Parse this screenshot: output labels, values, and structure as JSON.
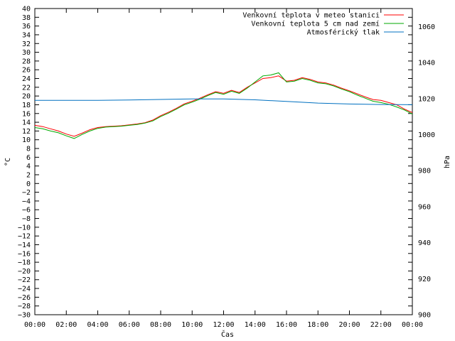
{
  "chart_data": {
    "type": "line",
    "xlabel": "Čas",
    "ylabel": "°C",
    "y2label": "hPa",
    "x_ticks": [
      "00:00",
      "02:00",
      "04:00",
      "06:00",
      "08:00",
      "10:00",
      "12:00",
      "14:00",
      "16:00",
      "18:00",
      "20:00",
      "22:00",
      "00:00"
    ],
    "xlim_hours": [
      0,
      24
    ],
    "ylim": [
      -30,
      40
    ],
    "y_ticks": [
      40,
      38,
      36,
      34,
      32,
      30,
      28,
      26,
      24,
      22,
      20,
      18,
      16,
      14,
      12,
      10,
      8,
      6,
      4,
      2,
      0,
      -2,
      -4,
      -6,
      -8,
      -10,
      -12,
      -14,
      -16,
      -18,
      -20,
      -22,
      -24,
      -26,
      -28,
      -30
    ],
    "y2lim": [
      900,
      1070
    ],
    "y2_ticks": [
      1060,
      1040,
      1020,
      1000,
      980,
      960,
      940,
      920,
      900
    ],
    "grid": false,
    "legend_position": "top-right",
    "series": [
      {
        "name": "Venkovní teplota v meteo stanici",
        "color": "#ff0000",
        "axis": "left",
        "x": [
          0,
          0.5,
          1,
          1.5,
          2,
          2.5,
          3,
          3.5,
          4,
          4.5,
          5,
          5.5,
          6,
          6.5,
          7,
          7.5,
          8,
          8.5,
          9,
          9.5,
          10,
          10.5,
          11,
          11.5,
          12,
          12.5,
          13,
          13.5,
          14,
          14.5,
          15,
          15.5,
          16,
          16.5,
          17,
          17.5,
          18,
          18.5,
          19,
          19.5,
          20,
          20.5,
          21,
          21.5,
          22,
          22.5,
          23,
          23.5,
          24
        ],
        "y": [
          13.3,
          13,
          12.5,
          12,
          11.3,
          10.8,
          11.5,
          12.3,
          12.8,
          13,
          13.1,
          13.2,
          13.4,
          13.6,
          13.9,
          14.5,
          15.5,
          16.3,
          17.2,
          18.2,
          18.8,
          19.5,
          20.3,
          21,
          20.6,
          21.3,
          20.8,
          22,
          23,
          24,
          24.2,
          24.6,
          23.4,
          23.6,
          24.2,
          23.8,
          23.2,
          23,
          22.5,
          21.8,
          21.2,
          20.5,
          19.8,
          19.2,
          19,
          18.5,
          18,
          17,
          16.2
        ]
      },
      {
        "name": "Venkovní teplota 5 cm nad zemí",
        "color": "#00aa00",
        "axis": "left",
        "x": [
          0,
          0.5,
          1,
          1.5,
          2,
          2.5,
          3,
          3.5,
          4,
          4.5,
          5,
          5.5,
          6,
          6.5,
          7,
          7.5,
          8,
          8.5,
          9,
          9.5,
          10,
          10.5,
          11,
          11.5,
          12,
          12.5,
          13,
          13.5,
          14,
          14.5,
          15,
          15.5,
          16,
          16.5,
          17,
          17.5,
          18,
          18.5,
          19,
          19.5,
          20,
          20.5,
          21,
          21.5,
          22,
          22.5,
          23,
          23.5,
          24
        ],
        "y": [
          12.8,
          12.5,
          12,
          11.6,
          10.9,
          10.3,
          11.2,
          12,
          12.6,
          12.9,
          13,
          13.1,
          13.3,
          13.5,
          13.8,
          14.3,
          15.3,
          16.1,
          17,
          18,
          18.6,
          19.3,
          20.1,
          20.8,
          20.4,
          21.1,
          20.6,
          21.8,
          23.2,
          24.6,
          24.8,
          25.3,
          23.2,
          23.4,
          24,
          23.6,
          23,
          22.8,
          22.3,
          21.6,
          21,
          20.2,
          19.5,
          18.8,
          18.5,
          18.1,
          17.5,
          16.8,
          15.9
        ]
      },
      {
        "name": "Atmosférický tlak",
        "color": "#0070c0",
        "axis": "right",
        "x": [
          0,
          2,
          4,
          6,
          8,
          10,
          12,
          14,
          16,
          18,
          20,
          22,
          24
        ],
        "y": [
          1019,
          1019,
          1019,
          1019.2,
          1019.5,
          1019.8,
          1019.8,
          1019.3,
          1018.4,
          1017.5,
          1017,
          1016.7,
          1016.6
        ]
      }
    ]
  }
}
